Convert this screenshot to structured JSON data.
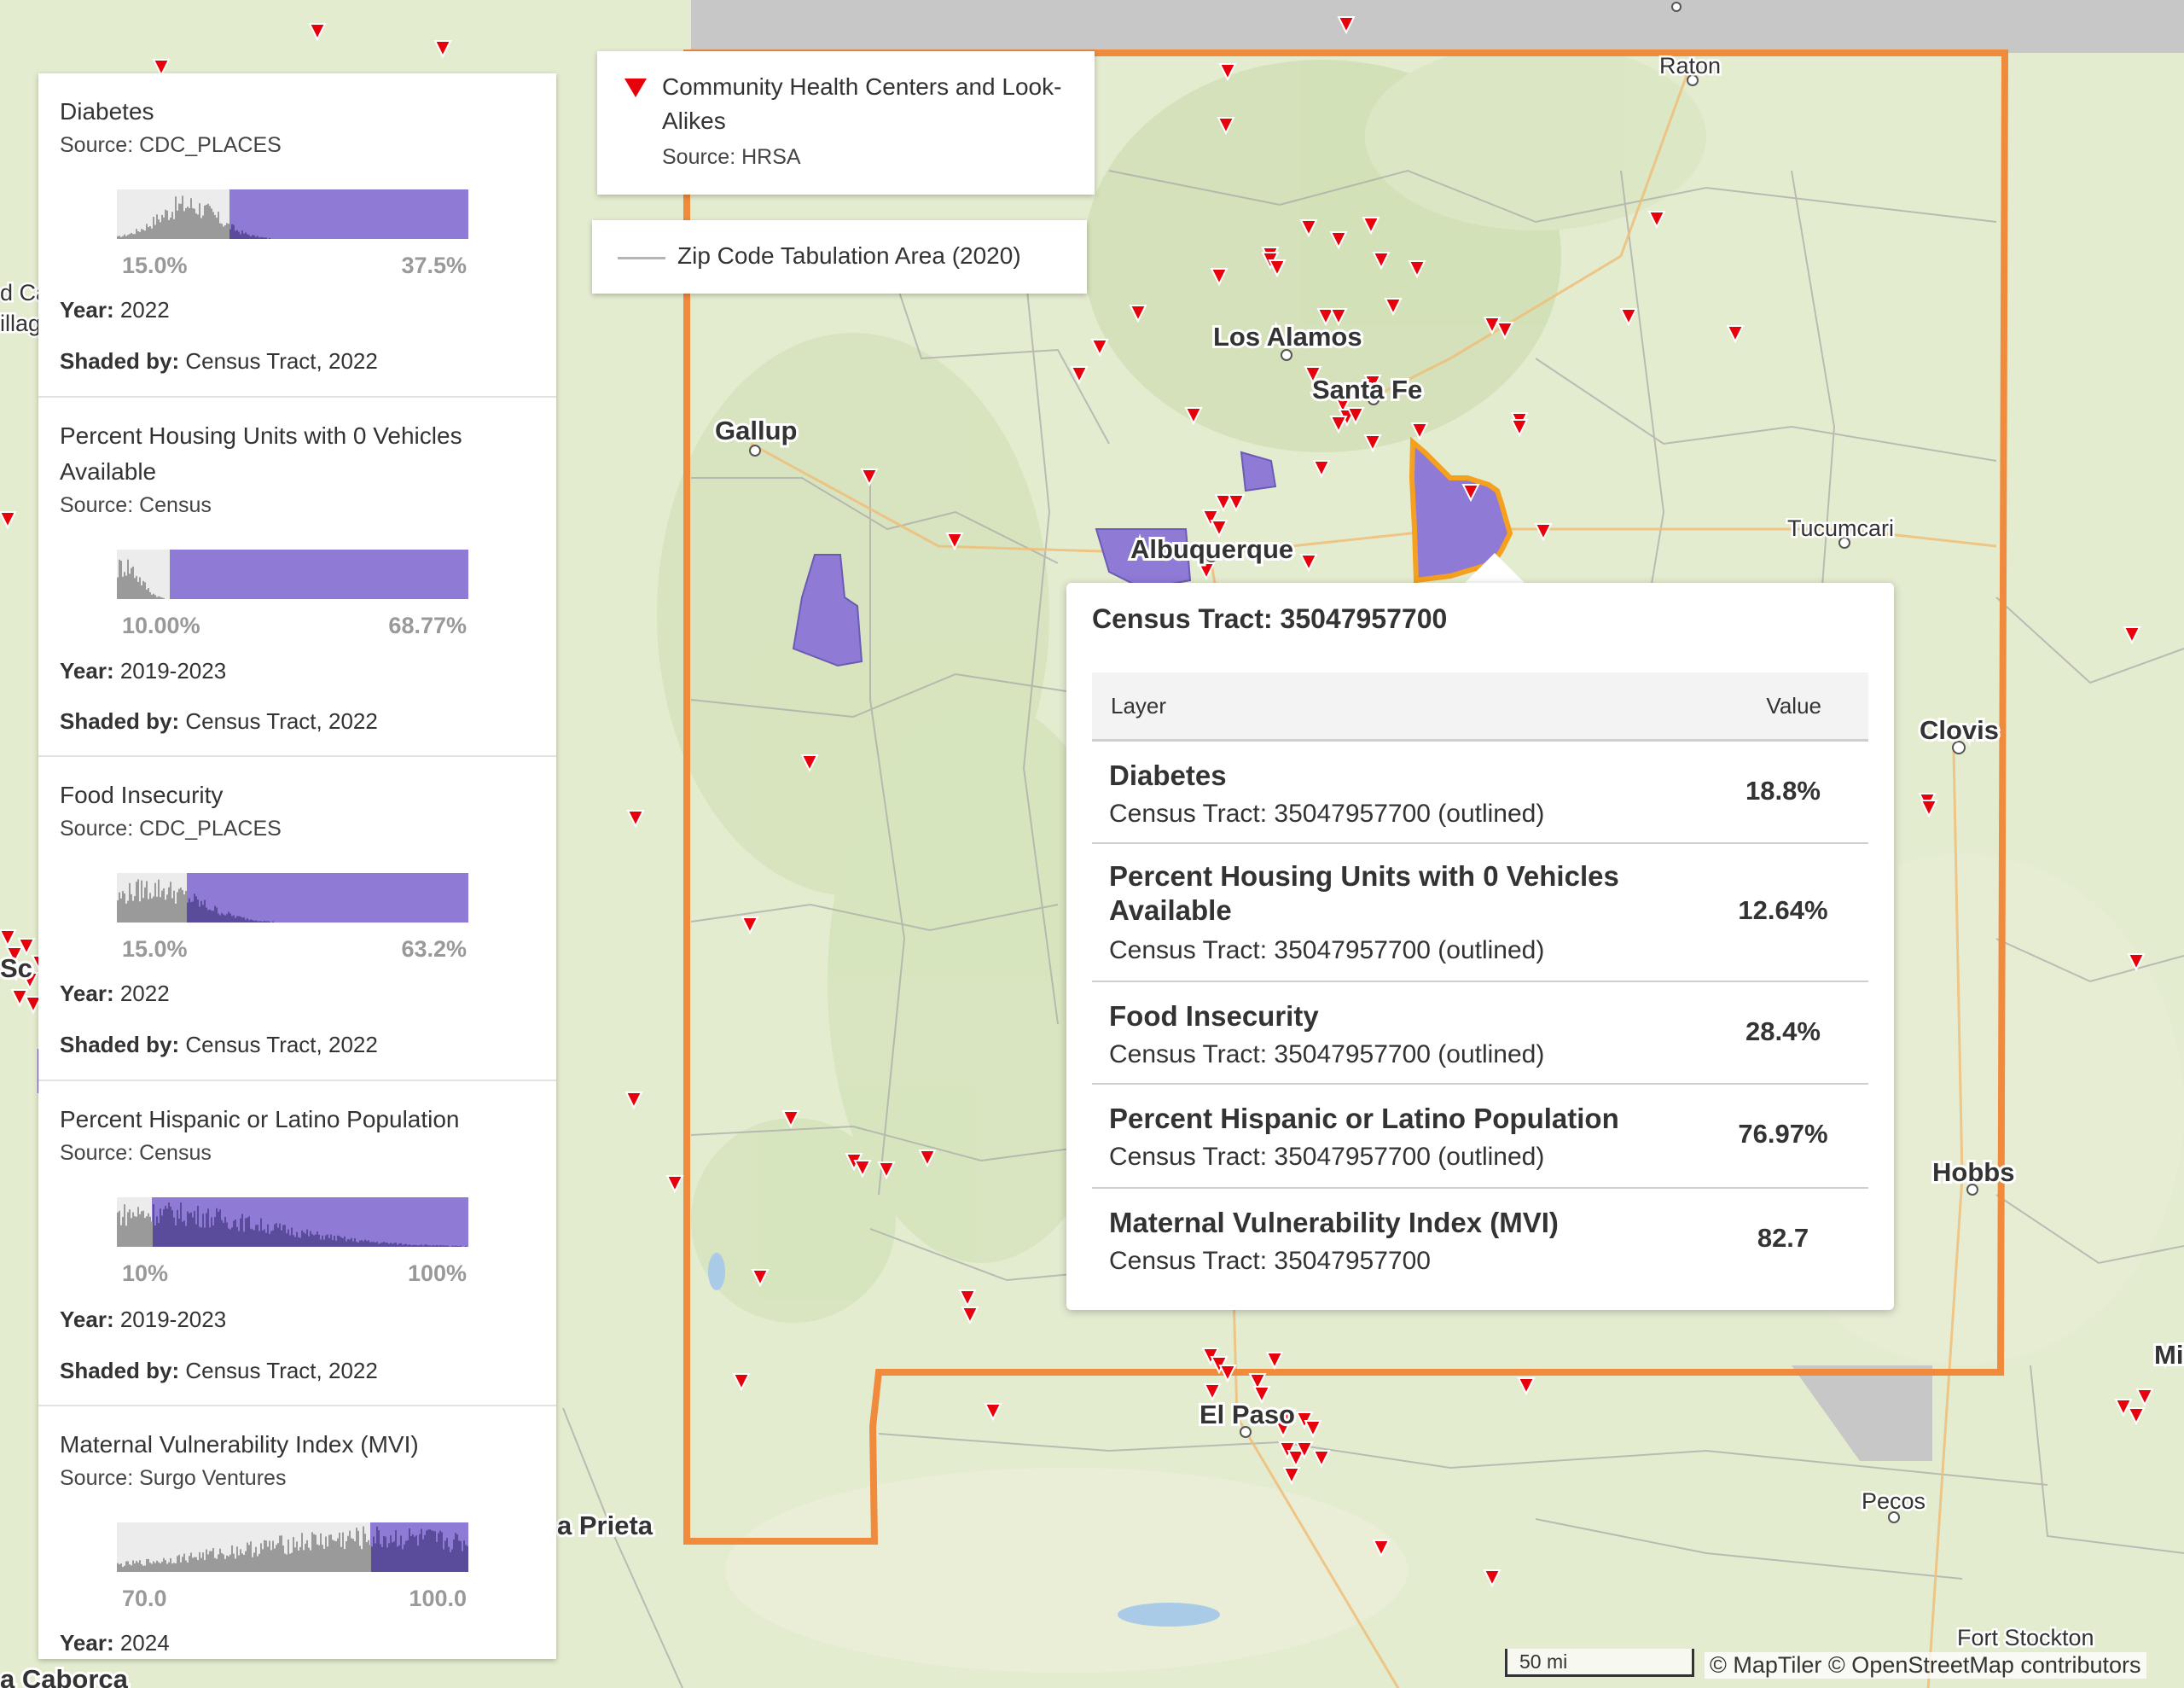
{
  "colors": {
    "state_outline": "#f08a3c",
    "marker": "#e8000b",
    "shaded": "#8f7ad6",
    "map_bg": "#e4ecd0"
  },
  "map": {
    "cities": {
      "raton": "Raton",
      "los_alamos": "Los Alamos",
      "santa_fe": "Santa Fe",
      "gallup": "Gallup",
      "albuquerque": "Albuquerque",
      "tucumcari": "Tucumcari",
      "clovis": "Clovis",
      "hobbs": "Hobbs",
      "el_paso": "El Paso",
      "pecos": "Pecos",
      "fort_stockton": "Fort Stockton",
      "agua_prieta_partial": "a Prieta",
      "caborca_partial": "a Caborca",
      "mi_partial": "Mi",
      "sc_partial": "Sc",
      "left_partial_1": "d Ca",
      "left_partial_2": "illag"
    }
  },
  "scale": {
    "label": "50 mi"
  },
  "attribution": "© MapTiler © OpenStreetMap contributors",
  "chc_legend": {
    "title": "Community Health Centers and Look-Alikes",
    "source": "Source: HRSA",
    "icon": "triangle-down-icon"
  },
  "zcta_legend": {
    "label": "Zip Code Tabulation Area (2020)"
  },
  "legend": [
    {
      "title": "Diabetes",
      "source": "Source: CDC_PLACES",
      "min": "15.0%",
      "max": "37.5%",
      "year_label": "Year:",
      "year": " 2022",
      "shaded_label": "Shaded by:",
      "shaded": " Census Tract, 2022",
      "shaded_fraction_start": 0.32
    },
    {
      "title": "Percent Housing Units with 0 Vehicles Available",
      "source": "Source: Census",
      "min": "10.00%",
      "max": "68.77%",
      "year_label": "Year:",
      "year": " 2019-2023",
      "shaded_label": "Shaded by:",
      "shaded": " Census Tract, 2022",
      "shaded_fraction_start": 0.15
    },
    {
      "title": "Food Insecurity",
      "source": "Source: CDC_PLACES",
      "min": "15.0%",
      "max": "63.2%",
      "year_label": "Year:",
      "year": " 2022",
      "shaded_label": "Shaded by:",
      "shaded": " Census Tract, 2022",
      "shaded_fraction_start": 0.2
    },
    {
      "title": "Percent Hispanic or Latino Population",
      "source": "Source: Census",
      "min": "10%",
      "max": "100%",
      "year_label": "Year:",
      "year": " 2019-2023",
      "shaded_label": "Shaded by:",
      "shaded": " Census Tract, 2022",
      "shaded_fraction_start": 0.1
    },
    {
      "title": "Maternal Vulnerability Index (MVI)",
      "source": "Source: Surgo Ventures",
      "min": "70.0",
      "max": "100.0",
      "year_label": "Year:",
      "year": " 2024",
      "shaded_fraction_start": 0.72
    }
  ],
  "popup": {
    "title": "Census Tract: 35047957700",
    "header_layer": "Layer",
    "header_value": "Value",
    "rows": [
      {
        "name": "Diabetes",
        "sub": "Census Tract: 35047957700 (outlined)",
        "value": "18.8%"
      },
      {
        "name": "Percent Housing Units with 0 Vehicles Available",
        "sub": "Census Tract: 35047957700 (outlined)",
        "value": "12.64%"
      },
      {
        "name": "Food Insecurity",
        "sub": "Census Tract: 35047957700 (outlined)",
        "value": "28.4%"
      },
      {
        "name": "Percent Hispanic or Latino Population",
        "sub": "Census Tract: 35047957700 (outlined)",
        "value": "76.97%"
      },
      {
        "name": "Maternal Vulnerability Index (MVI)",
        "sub": "Census Tract: 35047957700",
        "value": "82.7"
      }
    ]
  }
}
